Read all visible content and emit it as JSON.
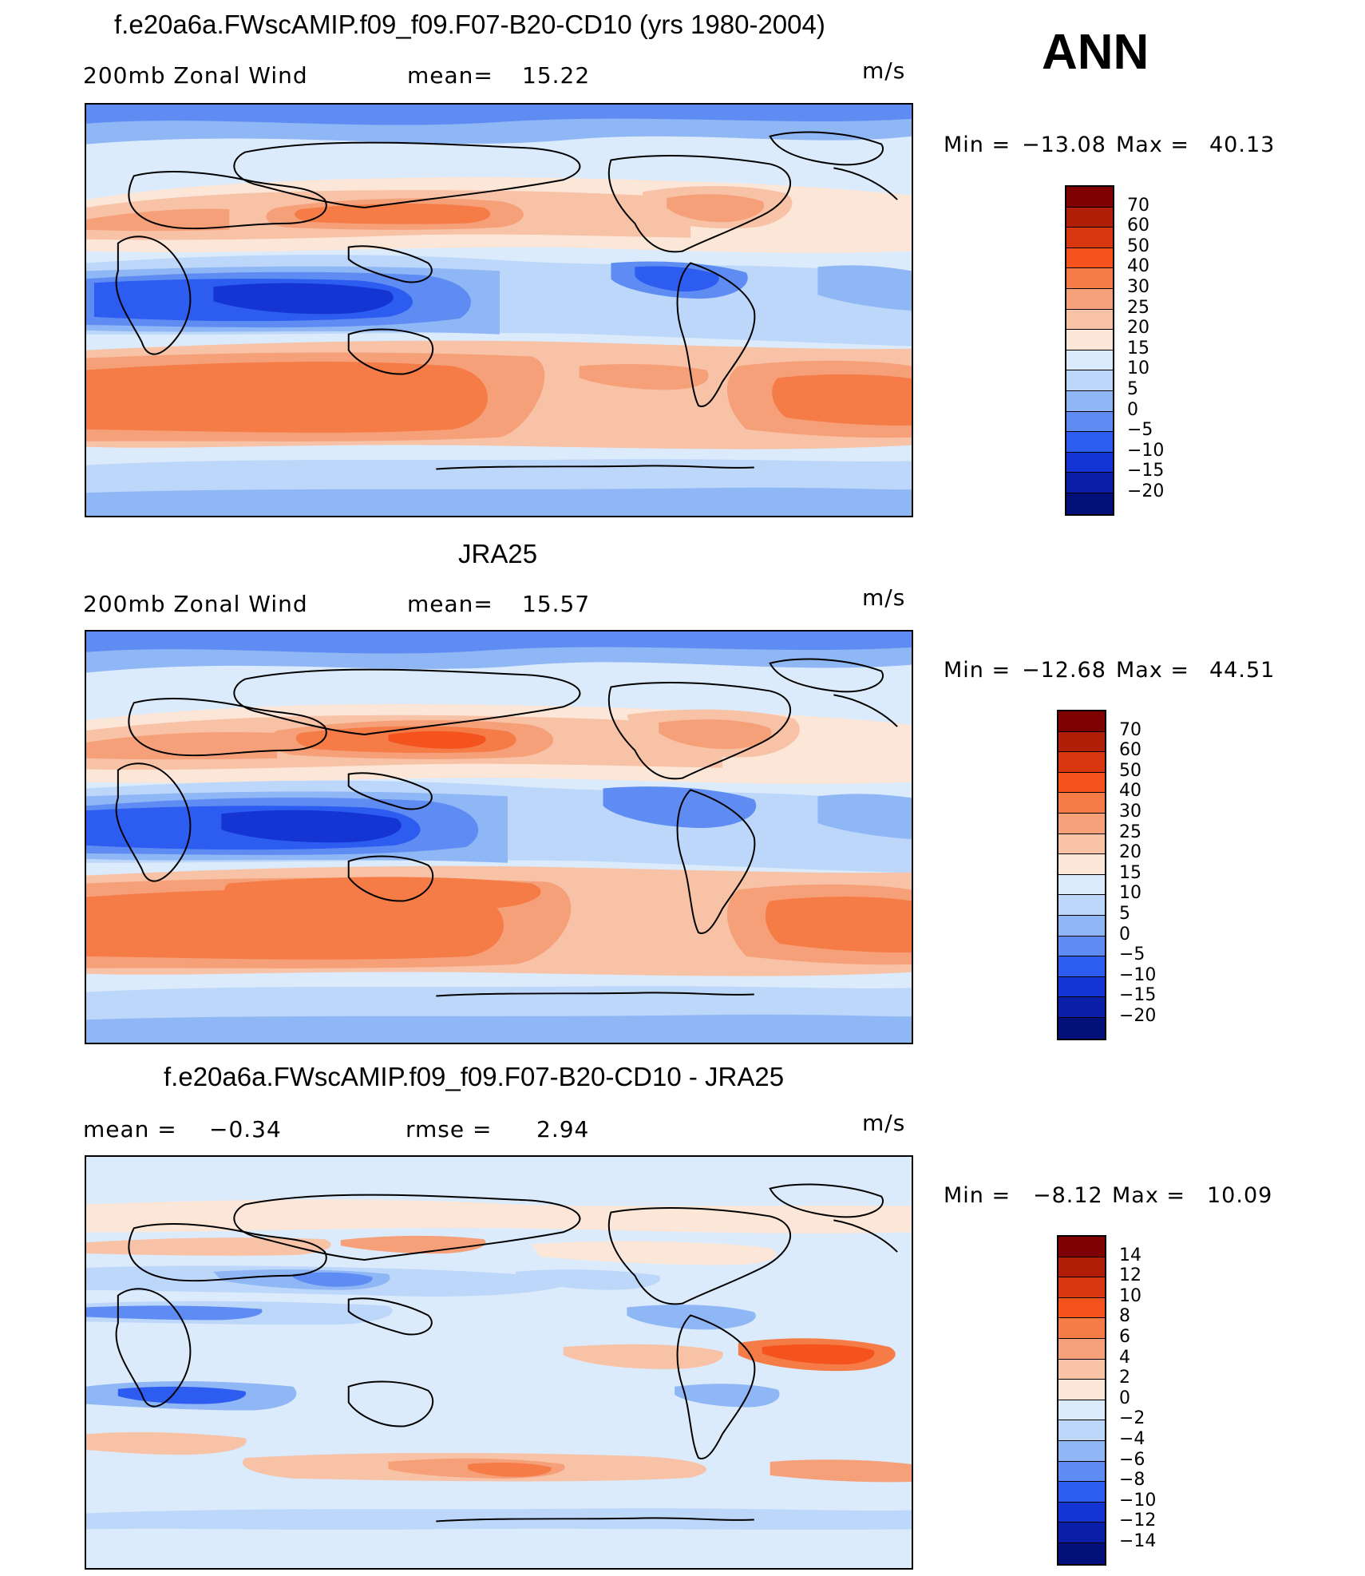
{
  "header": {
    "season": "ANN"
  },
  "panels": [
    {
      "title": "f.e20a6a.FWscAMIP.f09_f09.F07-B20-CD10 (yrs 1980-2004)",
      "variable": "200mb Zonal Wind",
      "stat1_label": "mean=",
      "stat1_value": "15.22",
      "stat2_label": "",
      "stat2_value": "",
      "units": "m/s",
      "min_label": "Min =",
      "min_value": "−13.08",
      "max_label": "Max =",
      "max_value": "40.13"
    },
    {
      "title": "JRA25",
      "variable": "200mb Zonal Wind",
      "stat1_label": "mean=",
      "stat1_value": "15.57",
      "stat2_label": "",
      "stat2_value": "",
      "units": "m/s",
      "min_label": "Min =",
      "min_value": "−12.68",
      "max_label": "Max =",
      "max_value": "44.51"
    },
    {
      "title": "f.e20a6a.FWscAMIP.f09_f09.F07-B20-CD10 - JRA25",
      "variable": "",
      "stat1_label": "mean =",
      "stat1_value": "−0.34",
      "stat2_label": "rmse =",
      "stat2_value": "2.94",
      "units": "m/s",
      "min_label": "Min =",
      "min_value": "−8.12",
      "max_label": "Max =",
      "max_value": "10.09"
    }
  ],
  "colorbars": {
    "field": {
      "labels": [
        "70",
        "60",
        "50",
        "40",
        "30",
        "25",
        "20",
        "15",
        "10",
        "5",
        "0",
        "−5",
        "−10",
        "−15",
        "−20"
      ],
      "colors": [
        "#7f0000",
        "#b01e08",
        "#d8360e",
        "#f4531e",
        "#f57c46",
        "#f6a07a",
        "#f8c2a6",
        "#fce6d8",
        "#dcebfb",
        "#bcd7fa",
        "#8fb6f5",
        "#5f8cf2",
        "#2c5cf0",
        "#1434d4",
        "#0a1ea8",
        "#04107a"
      ]
    },
    "diff": {
      "labels": [
        "14",
        "12",
        "10",
        "8",
        "6",
        "4",
        "2",
        "0",
        "−2",
        "−4",
        "−6",
        "−8",
        "−10",
        "−12",
        "−14"
      ],
      "colors": [
        "#7f0000",
        "#b01e08",
        "#d8360e",
        "#f4531e",
        "#f57c46",
        "#f6a07a",
        "#f8c2a6",
        "#fce6d8",
        "#dcebfb",
        "#bcd7fa",
        "#8fb6f5",
        "#5f8cf2",
        "#2c5cf0",
        "#1434d4",
        "#0a1ea8",
        "#04107a"
      ]
    }
  }
}
